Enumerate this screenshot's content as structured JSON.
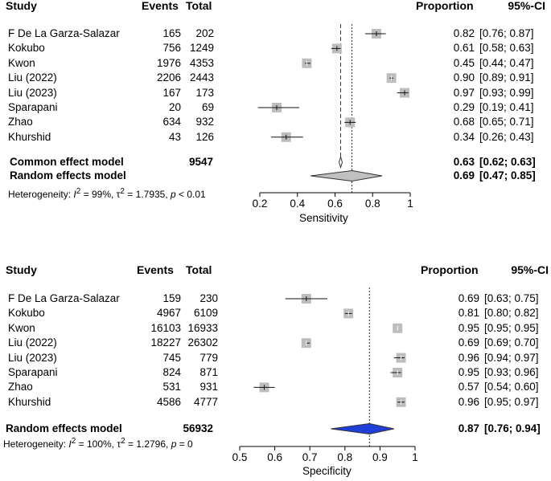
{
  "chart_data": [
    {
      "type": "forest",
      "title": "Sensitivity",
      "xlabel": "Sensitivity",
      "xlim": [
        0.2,
        1
      ],
      "xticks": [
        "0.2",
        "0.4",
        "0.6",
        "0.8",
        "1"
      ],
      "headers": {
        "study": "Study",
        "events": "Events",
        "total": "Total",
        "proportion": "Proportion",
        "ci": "95%-CI"
      },
      "studies": [
        {
          "name": "F De La Garza-Salazar",
          "events": "165",
          "total": "202",
          "prop": 0.82,
          "lo": 0.76,
          "hi": 0.87,
          "prop_label": "0.82",
          "ci_label": "[0.76; 0.87]"
        },
        {
          "name": "Kokubo",
          "events": "756",
          "total": "1249",
          "prop": 0.61,
          "lo": 0.58,
          "hi": 0.63,
          "prop_label": "0.61",
          "ci_label": "[0.58; 0.63]"
        },
        {
          "name": "Kwon",
          "events": "1976",
          "total": "4353",
          "prop": 0.45,
          "lo": 0.44,
          "hi": 0.47,
          "prop_label": "0.45",
          "ci_label": "[0.44; 0.47]"
        },
        {
          "name": "Liu (2022)",
          "events": "2206",
          "total": "2443",
          "prop": 0.9,
          "lo": 0.89,
          "hi": 0.91,
          "prop_label": "0.90",
          "ci_label": "[0.89; 0.91]"
        },
        {
          "name": "Liu (2023)",
          "events": "167",
          "total": "173",
          "prop": 0.97,
          "lo": 0.93,
          "hi": 0.99,
          "prop_label": "0.97",
          "ci_label": "[0.93; 0.99]"
        },
        {
          "name": "Sparapani",
          "events": "20",
          "total": "69",
          "prop": 0.29,
          "lo": 0.19,
          "hi": 0.41,
          "prop_label": "0.29",
          "ci_label": "[0.19; 0.41]"
        },
        {
          "name": "Zhao",
          "events": "634",
          "total": "932",
          "prop": 0.68,
          "lo": 0.65,
          "hi": 0.71,
          "prop_label": "0.68",
          "ci_label": "[0.65; 0.71]"
        },
        {
          "name": "Khurshid",
          "events": "43",
          "total": "126",
          "prop": 0.34,
          "lo": 0.26,
          "hi": 0.43,
          "prop_label": "0.34",
          "ci_label": "[0.26; 0.43]"
        }
      ],
      "summaries": [
        {
          "name": "Common effect model",
          "total": "9547",
          "est": 0.63,
          "lo": 0.62,
          "hi": 0.63,
          "prop_label": "0.63",
          "ci_label": "[0.62; 0.63]",
          "color": "#ffffff"
        },
        {
          "name": "Random effects model",
          "total": "",
          "est": 0.69,
          "lo": 0.47,
          "hi": 0.85,
          "prop_label": "0.69",
          "ci_label": "[0.47; 0.85]",
          "color": "#c0c0c0"
        }
      ],
      "dashed_ref": 0.63,
      "dotted_ref": 0.69,
      "heterogeneity": {
        "prefix": "Heterogeneity: ",
        "i2_label": "I",
        "i2_value": " = 99%, τ",
        "tau2_value": " = 1.7935, ",
        "p_label": "p",
        "p_value": " < 0.01"
      }
    },
    {
      "type": "forest",
      "title": "Specificity",
      "xlabel": "Specificity",
      "xlim": [
        0.5,
        1
      ],
      "xticks": [
        "0.5",
        "0.6",
        "0.7",
        "0.8",
        "0.9",
        "1"
      ],
      "headers": {
        "study": "Study",
        "events": "Events",
        "total": "Total",
        "proportion": "Proportion",
        "ci": "95%-CI"
      },
      "studies": [
        {
          "name": "F De La Garza-Salazar",
          "events": "159",
          "total": "230",
          "prop": 0.69,
          "lo": 0.63,
          "hi": 0.75,
          "prop_label": "0.69",
          "ci_label": "[0.63; 0.75]"
        },
        {
          "name": "Kokubo",
          "events": "4967",
          "total": "6109",
          "prop": 0.81,
          "lo": 0.8,
          "hi": 0.82,
          "prop_label": "0.81",
          "ci_label": "[0.80; 0.82]"
        },
        {
          "name": "Kwon",
          "events": "16103",
          "total": "16933",
          "prop": 0.95,
          "lo": 0.95,
          "hi": 0.95,
          "prop_label": "0.95",
          "ci_label": "[0.95; 0.95]"
        },
        {
          "name": "Liu (2022)",
          "events": "18227",
          "total": "26302",
          "prop": 0.69,
          "lo": 0.69,
          "hi": 0.7,
          "prop_label": "0.69",
          "ci_label": "[0.69; 0.70]"
        },
        {
          "name": "Liu (2023)",
          "events": "745",
          "total": "779",
          "prop": 0.96,
          "lo": 0.94,
          "hi": 0.97,
          "prop_label": "0.96",
          "ci_label": "[0.94; 0.97]"
        },
        {
          "name": "Sparapani",
          "events": "824",
          "total": "871",
          "prop": 0.95,
          "lo": 0.93,
          "hi": 0.96,
          "prop_label": "0.95",
          "ci_label": "[0.93; 0.96]"
        },
        {
          "name": "Zhao",
          "events": "531",
          "total": "931",
          "prop": 0.57,
          "lo": 0.54,
          "hi": 0.6,
          "prop_label": "0.57",
          "ci_label": "[0.54; 0.60]"
        },
        {
          "name": "Khurshid",
          "events": "4586",
          "total": "4777",
          "prop": 0.96,
          "lo": 0.95,
          "hi": 0.97,
          "prop_label": "0.96",
          "ci_label": "[0.95; 0.97]"
        }
      ],
      "summaries": [
        {
          "name": "Random effects model",
          "total": "56932",
          "est": 0.87,
          "lo": 0.76,
          "hi": 0.94,
          "prop_label": "0.87",
          "ci_label": "[0.76; 0.94]",
          "color": "#1f3fd8"
        }
      ],
      "dashed_ref": null,
      "dotted_ref": 0.87,
      "heterogeneity": {
        "prefix": "Heterogeneity: ",
        "i2_label": "I",
        "i2_value": " = 100%, τ",
        "tau2_value": " = 1.2796, ",
        "p_label": "p",
        "p_value": " = 0"
      }
    }
  ]
}
